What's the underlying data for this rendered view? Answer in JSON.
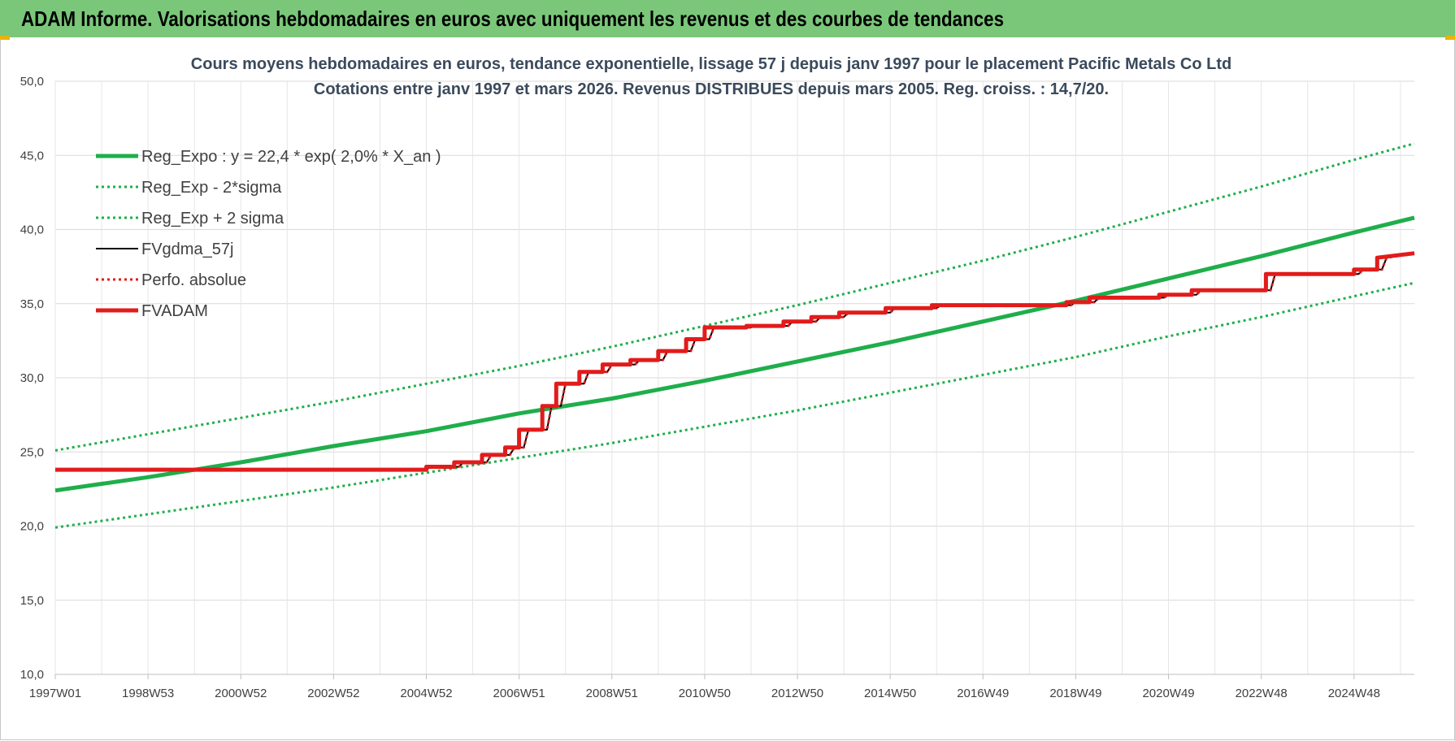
{
  "banner": {
    "title": "ADAM Informe. Valorisations hebdomadaires en euros avec uniquement les revenus et des courbes de tendances",
    "color": "#7ac77a"
  },
  "chart_data": {
    "type": "line",
    "title": "Cours moyens hebdomadaires en euros, tendance exponentielle, lissage 57 j depuis janv 1997 pour le placement Pacific Metals Co Ltd",
    "subtitle": "Cotations entre janv 1997 et mars 2026. Revenus DISTRIBUES depuis mars 2005. Reg. croiss. : 14,7/20.",
    "ylim": [
      10,
      50
    ],
    "y_ticks": [
      "10,0",
      "15,0",
      "20,0",
      "25,0",
      "30,0",
      "35,0",
      "40,0",
      "45,0",
      "50,0"
    ],
    "x_range": [
      1997.0,
      2026.3
    ],
    "x_ticks": [
      {
        "label": "1997W01",
        "x": 1997.0
      },
      {
        "label": "1998W53",
        "x": 1999.0
      },
      {
        "label": "2000W52",
        "x": 2001.0
      },
      {
        "label": "2002W52",
        "x": 2003.0
      },
      {
        "label": "2004W52",
        "x": 2005.0
      },
      {
        "label": "2006W51",
        "x": 2007.0
      },
      {
        "label": "2008W51",
        "x": 2009.0
      },
      {
        "label": "2010W50",
        "x": 2011.0
      },
      {
        "label": "2012W50",
        "x": 2013.0
      },
      {
        "label": "2014W50",
        "x": 2015.0
      },
      {
        "label": "2016W49",
        "x": 2017.0
      },
      {
        "label": "2018W49",
        "x": 2019.0
      },
      {
        "label": "2020W49",
        "x": 2021.0
      },
      {
        "label": "2022W48",
        "x": 2023.0
      },
      {
        "label": "2024W48",
        "x": 2025.0
      }
    ],
    "grid": true,
    "legend_position": "top-left",
    "series": [
      {
        "name": "Reg_Expo : y = 22,4 * exp( 2,0% *  X_an )",
        "color": "#1fae4b",
        "style": "solid-thick",
        "x": [
          1997.0,
          1999.0,
          2001.0,
          2003.0,
          2005.0,
          2007.0,
          2009.0,
          2011.0,
          2013.0,
          2015.0,
          2017.0,
          2019.0,
          2021.0,
          2023.0,
          2025.0,
          2026.3
        ],
        "y": [
          22.4,
          23.3,
          24.3,
          25.4,
          26.4,
          27.6,
          28.6,
          29.8,
          31.1,
          32.4,
          33.8,
          35.2,
          36.7,
          38.2,
          39.8,
          40.8
        ]
      },
      {
        "name": "Reg_Exp - 2*sigma",
        "color": "#1fae4b",
        "style": "dotted",
        "x": [
          1997.0,
          1999.0,
          2001.0,
          2003.0,
          2005.0,
          2007.0,
          2009.0,
          2011.0,
          2013.0,
          2015.0,
          2017.0,
          2019.0,
          2021.0,
          2023.0,
          2025.0,
          2026.3
        ],
        "y": [
          19.9,
          20.8,
          21.7,
          22.6,
          23.6,
          24.6,
          25.6,
          26.7,
          27.8,
          29.0,
          30.2,
          31.4,
          32.8,
          34.1,
          35.5,
          36.4
        ]
      },
      {
        "name": "Reg_Exp + 2 sigma",
        "color": "#1fae4b",
        "style": "dotted",
        "x": [
          1997.0,
          1999.0,
          2001.0,
          2003.0,
          2005.0,
          2007.0,
          2009.0,
          2011.0,
          2013.0,
          2015.0,
          2017.0,
          2019.0,
          2021.0,
          2023.0,
          2025.0,
          2026.3
        ],
        "y": [
          25.1,
          26.2,
          27.3,
          28.4,
          29.6,
          30.8,
          32.1,
          33.5,
          34.9,
          36.4,
          37.9,
          39.5,
          41.2,
          42.9,
          44.7,
          45.8
        ]
      },
      {
        "name": "FVgdma_57j",
        "color": "#000000",
        "style": "solid",
        "x": [
          1997.0,
          2005.0,
          2005.1,
          2005.7,
          2005.8,
          2006.3,
          2006.4,
          2006.8,
          2006.9,
          2007.1,
          2007.2,
          2007.6,
          2007.7,
          2007.9,
          2008.0,
          2008.4,
          2008.5,
          2008.9,
          2009.0,
          2009.5,
          2009.6,
          2010.1,
          2010.2,
          2010.7,
          2010.8,
          2011.1,
          2011.2,
          2012.0,
          2012.1,
          2012.8,
          2012.9,
          2013.4,
          2013.5,
          2014.0,
          2014.1,
          2015.0,
          2015.1,
          2016.0,
          2016.1,
          2018.9,
          2019.0,
          2019.4,
          2019.5,
          2020.9,
          2021.0,
          2021.6,
          2021.7,
          2023.2,
          2023.3,
          2025.1,
          2025.2,
          2025.6,
          2025.7,
          2026.3
        ],
        "y": [
          23.8,
          23.8,
          24.0,
          24.0,
          24.3,
          24.3,
          24.8,
          24.8,
          25.3,
          25.3,
          26.5,
          26.5,
          28.1,
          28.1,
          29.6,
          29.6,
          30.4,
          30.4,
          30.9,
          30.9,
          31.2,
          31.2,
          31.8,
          31.8,
          32.6,
          32.6,
          33.4,
          33.4,
          33.5,
          33.5,
          33.8,
          33.8,
          34.1,
          34.1,
          34.4,
          34.4,
          34.7,
          34.7,
          34.9,
          34.9,
          35.1,
          35.1,
          35.4,
          35.4,
          35.6,
          35.6,
          35.9,
          35.9,
          37.0,
          37.0,
          37.3,
          37.3,
          38.1,
          38.4
        ]
      },
      {
        "name": "Perfo. absolue",
        "color": "#e21b1b",
        "style": "dotted",
        "x": [
          1997.0,
          2005.0,
          2005.1,
          2005.7,
          2005.8,
          2006.3,
          2006.4,
          2006.8,
          2006.9,
          2007.1,
          2007.2,
          2007.6,
          2007.7,
          2007.9,
          2008.0,
          2008.4,
          2008.5,
          2008.9,
          2009.0,
          2009.5,
          2009.6,
          2010.1,
          2010.2,
          2010.7,
          2010.8,
          2011.1,
          2011.2,
          2012.0,
          2012.1,
          2012.8,
          2012.9,
          2013.4,
          2013.5,
          2014.0,
          2014.1,
          2015.0,
          2015.1,
          2016.0,
          2016.1,
          2018.9,
          2019.0,
          2019.4,
          2019.5,
          2020.9,
          2021.0,
          2021.6,
          2021.7,
          2023.2,
          2023.3,
          2025.1,
          2025.2,
          2025.6,
          2025.7,
          2026.3
        ],
        "y": [
          23.8,
          23.8,
          24.0,
          24.0,
          24.3,
          24.3,
          24.8,
          24.8,
          25.3,
          25.3,
          26.5,
          26.5,
          28.1,
          28.1,
          29.6,
          29.6,
          30.4,
          30.4,
          30.9,
          30.9,
          31.2,
          31.2,
          31.8,
          31.8,
          32.6,
          32.6,
          33.4,
          33.4,
          33.5,
          33.5,
          33.8,
          33.8,
          34.1,
          34.1,
          34.4,
          34.4,
          34.7,
          34.7,
          34.9,
          34.9,
          35.1,
          35.1,
          35.4,
          35.4,
          35.6,
          35.6,
          35.9,
          35.9,
          37.0,
          37.0,
          37.3,
          37.3,
          38.1,
          38.4
        ]
      },
      {
        "name": "FVADAM",
        "color": "#e21b1b",
        "style": "solid-thick",
        "x": [
          1997.0,
          2005.0,
          2005.0,
          2005.6,
          2005.6,
          2006.2,
          2006.2,
          2006.7,
          2006.7,
          2007.0,
          2007.0,
          2007.5,
          2007.5,
          2007.8,
          2007.8,
          2008.3,
          2008.3,
          2008.8,
          2008.8,
          2009.4,
          2009.4,
          2010.0,
          2010.0,
          2010.6,
          2010.6,
          2011.0,
          2011.0,
          2011.9,
          2011.9,
          2012.7,
          2012.7,
          2013.3,
          2013.3,
          2013.9,
          2013.9,
          2014.9,
          2014.9,
          2015.9,
          2015.9,
          2018.8,
          2018.8,
          2019.3,
          2019.3,
          2020.8,
          2020.8,
          2021.5,
          2021.5,
          2023.1,
          2023.1,
          2025.0,
          2025.0,
          2025.5,
          2025.5,
          2026.3
        ],
        "y": [
          23.8,
          23.8,
          24.0,
          24.0,
          24.3,
          24.3,
          24.8,
          24.8,
          25.3,
          25.3,
          26.5,
          26.5,
          28.1,
          28.1,
          29.6,
          29.6,
          30.4,
          30.4,
          30.9,
          30.9,
          31.2,
          31.2,
          31.8,
          31.8,
          32.6,
          32.6,
          33.4,
          33.4,
          33.5,
          33.5,
          33.8,
          33.8,
          34.1,
          34.1,
          34.4,
          34.4,
          34.7,
          34.7,
          34.9,
          34.9,
          35.1,
          35.1,
          35.4,
          35.4,
          35.6,
          35.6,
          35.9,
          35.9,
          37.0,
          37.0,
          37.3,
          37.3,
          38.1,
          38.4
        ]
      }
    ]
  }
}
